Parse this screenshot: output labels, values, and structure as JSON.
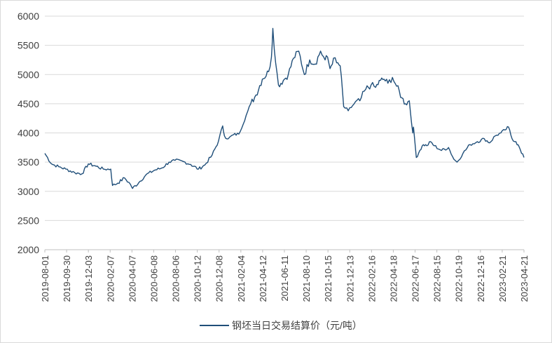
{
  "chart_data": {
    "type": "line",
    "title": "",
    "xlabel": "",
    "ylabel": "",
    "ylim": [
      2000,
      6000
    ],
    "yticks": [
      2000,
      2500,
      3000,
      3500,
      4000,
      4500,
      5000,
      5500,
      6000
    ],
    "grid": "horizontal",
    "legend_position": "bottom",
    "colors": {
      "line": "#1f4e79",
      "grid": "#d9d9d9",
      "axis": "#bfbfbf",
      "text": "#404040"
    },
    "x_tick_labels": [
      "2019-08-01",
      "2019-09-30",
      "2019-12-03",
      "2020-02-07",
      "2020-04-07",
      "2020-06-08",
      "2020-08-06",
      "2020-10-12",
      "2020-12-08",
      "2021-02-04",
      "2021-04-12",
      "2021-06-11",
      "2021-08-10",
      "2021-10-15",
      "2021-12-13",
      "2022-02-16",
      "2022-04-18",
      "2022-06-17",
      "2022-08-15",
      "2022-10-19",
      "2022-12-16",
      "2023-02-21",
      "2023-04-21"
    ],
    "series": [
      {
        "name": "钢坯当日交易结算价（元/吨）",
        "x": [
          "2019-08-01",
          "2019-08-20",
          "2019-09-10",
          "2019-09-30",
          "2019-10-25",
          "2019-11-15",
          "2019-12-03",
          "2019-12-25",
          "2020-01-15",
          "2020-02-05",
          "2020-02-10",
          "2020-02-25",
          "2020-03-15",
          "2020-04-01",
          "2020-04-07",
          "2020-04-25",
          "2020-05-15",
          "2020-06-08",
          "2020-06-30",
          "2020-07-20",
          "2020-08-06",
          "2020-08-30",
          "2020-09-20",
          "2020-10-12",
          "2020-10-30",
          "2020-11-20",
          "2020-12-08",
          "2020-12-20",
          "2020-12-25",
          "2021-01-05",
          "2021-01-20",
          "2021-02-04",
          "2021-02-25",
          "2021-03-10",
          "2021-03-25",
          "2021-04-12",
          "2021-04-30",
          "2021-05-08",
          "2021-05-12",
          "2021-05-20",
          "2021-05-28",
          "2021-06-11",
          "2021-06-25",
          "2021-07-10",
          "2021-07-25",
          "2021-08-10",
          "2021-08-25",
          "2021-09-10",
          "2021-09-25",
          "2021-10-08",
          "2021-10-15",
          "2021-10-22",
          "2021-11-01",
          "2021-11-10",
          "2021-11-20",
          "2021-11-30",
          "2021-12-13",
          "2021-12-30",
          "2022-01-15",
          "2022-02-01",
          "2022-02-16",
          "2022-03-01",
          "2022-03-15",
          "2022-03-25",
          "2022-04-05",
          "2022-04-18",
          "2022-04-30",
          "2022-05-15",
          "2022-05-25",
          "2022-06-05",
          "2022-06-15",
          "2022-06-17",
          "2022-06-25",
          "2022-07-05",
          "2022-07-15",
          "2022-07-25",
          "2022-08-05",
          "2022-08-15",
          "2022-09-05",
          "2022-09-25",
          "2022-10-10",
          "2022-10-19",
          "2022-11-05",
          "2022-11-25",
          "2022-12-16",
          "2023-01-05",
          "2023-01-20",
          "2023-02-05",
          "2023-02-21",
          "2023-03-05",
          "2023-03-15",
          "2023-03-25",
          "2023-04-05",
          "2023-04-15",
          "2023-04-21",
          "2023-04-28"
        ],
        "values": [
          3650,
          3470,
          3420,
          3380,
          3320,
          3300,
          3470,
          3430,
          3380,
          3380,
          3100,
          3140,
          3230,
          3120,
          3050,
          3150,
          3280,
          3360,
          3400,
          3500,
          3530,
          3510,
          3460,
          3380,
          3450,
          3620,
          3860,
          4120,
          3950,
          3900,
          3970,
          3980,
          4300,
          4500,
          4650,
          4920,
          5050,
          5300,
          5790,
          5200,
          4820,
          4900,
          5000,
          5280,
          5400,
          5000,
          5250,
          5180,
          5400,
          5250,
          5300,
          5100,
          5280,
          5200,
          5150,
          4450,
          4380,
          4500,
          4550,
          4750,
          4820,
          4780,
          4900,
          4920,
          4850,
          4950,
          4800,
          4600,
          4500,
          4550,
          4000,
          4100,
          3580,
          3700,
          3800,
          3780,
          3850,
          3780,
          3700,
          3750,
          3550,
          3500,
          3650,
          3800,
          3850,
          3900,
          3830,
          3950,
          4000,
          4050,
          4100,
          3900,
          3850,
          3750,
          3650,
          3580
        ]
      }
    ]
  }
}
